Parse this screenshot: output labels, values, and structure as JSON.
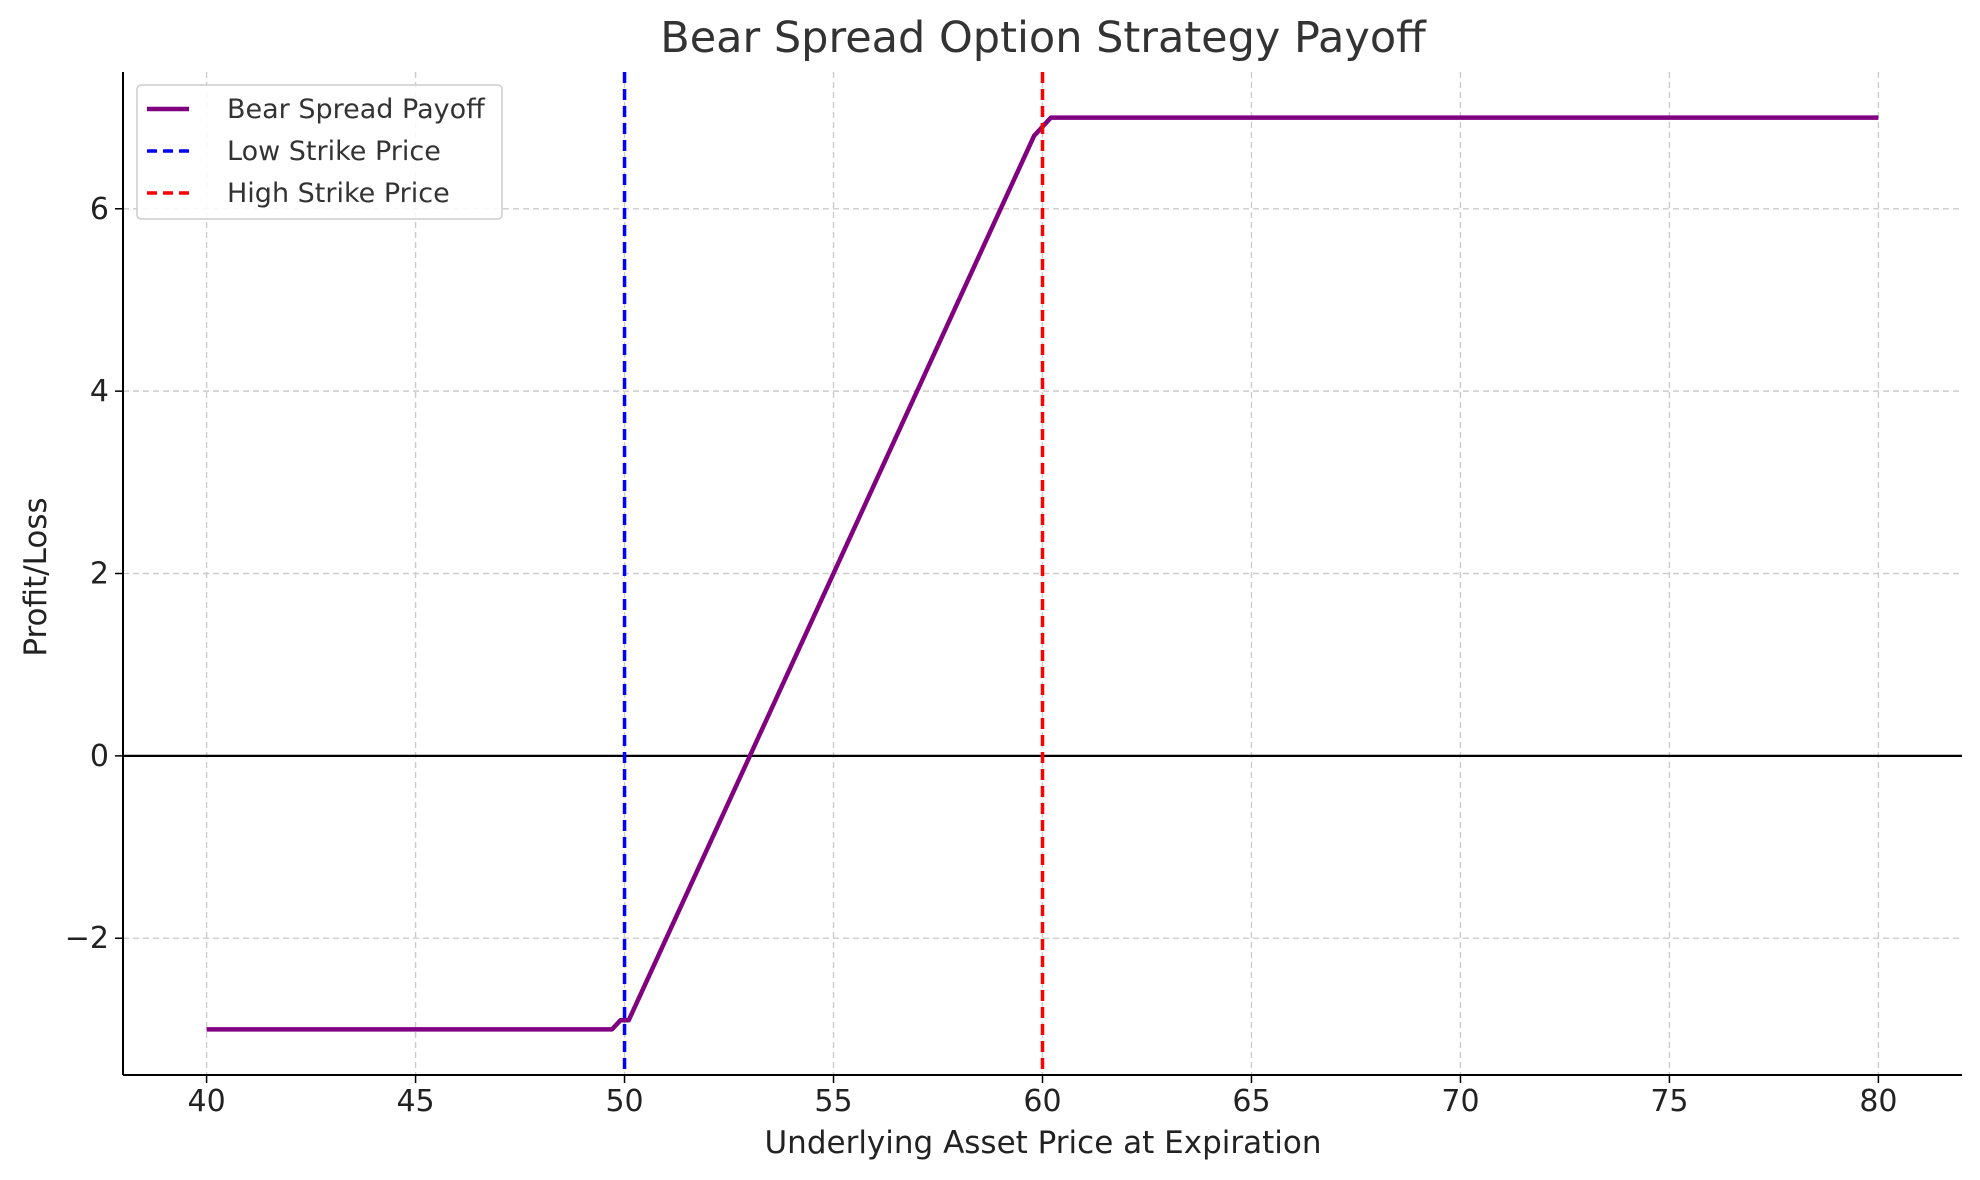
{
  "chart_data": {
    "type": "line",
    "title": "Bear Spread Option Strategy Payoff",
    "xlabel": "Underlying Asset Price at Expiration",
    "ylabel": "Profit/Loss",
    "xlim": [
      38,
      82
    ],
    "ylim": [
      -3.5,
      7.5
    ],
    "xticks": [
      40,
      45,
      50,
      55,
      60,
      65,
      70,
      75,
      80
    ],
    "yticks": [
      -2,
      0,
      2,
      4,
      6
    ],
    "ytick_labels": [
      "−2",
      "0",
      "2",
      "4",
      "6"
    ],
    "grid": true,
    "zero_line": true,
    "legend_position": "top-left",
    "series": [
      {
        "name": "Bear Spread Payoff",
        "color": "#800080",
        "style": "solid",
        "x": [
          40,
          49.7,
          49.9,
          50.1,
          59.8,
          60,
          60.2,
          80
        ],
        "y": [
          -3,
          -3,
          -2.9,
          -2.9,
          6.8,
          6.9,
          7,
          7
        ]
      },
      {
        "name": "Low Strike Price",
        "color": "#0000ff",
        "style": "dashed",
        "vline": 50
      },
      {
        "name": "High Strike Price",
        "color": "#ff0000",
        "style": "dashed",
        "vline": 60
      }
    ]
  }
}
